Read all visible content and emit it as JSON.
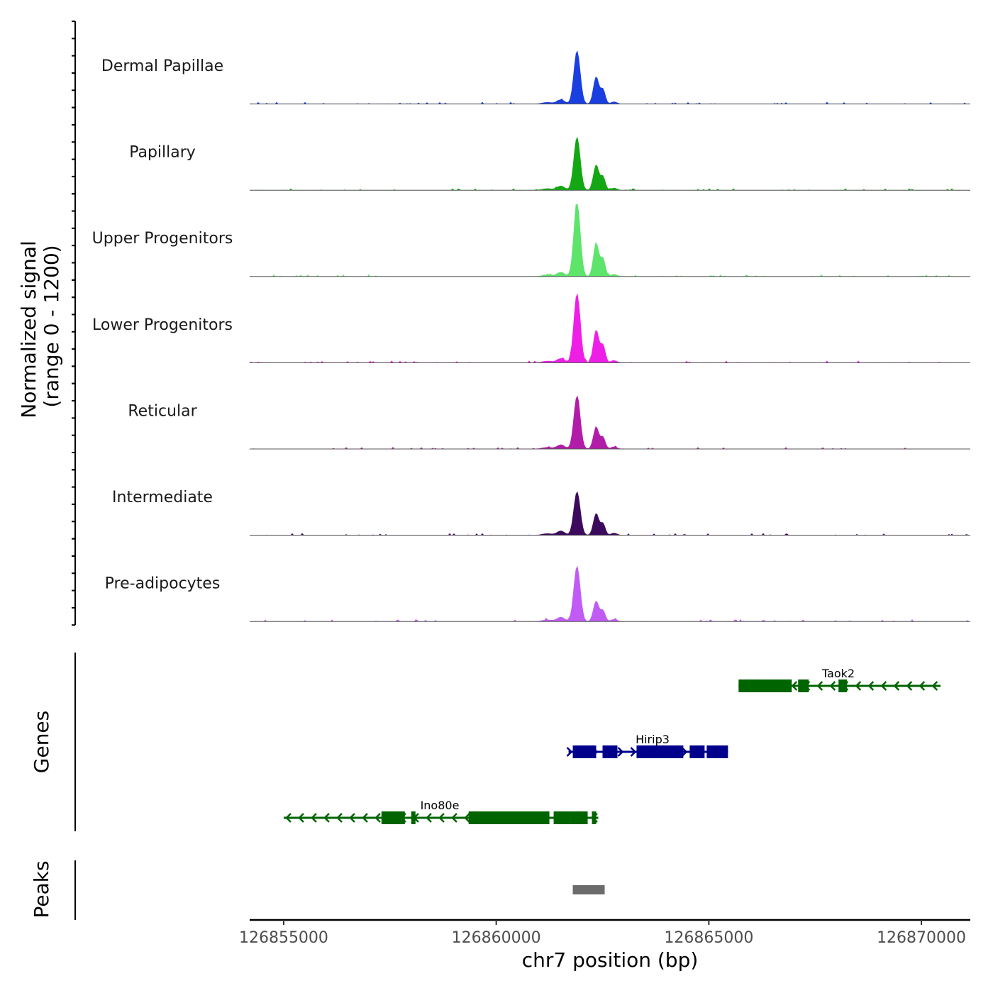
{
  "chart_data": {
    "type": "area",
    "title": "",
    "xlabel": "chr7 position (bp)",
    "ylabel": "Normalized signal\n(range 0 - 1200)",
    "ylabel_lines": [
      "Normalized signal",
      "(range 0 - 1200)"
    ],
    "xlim": [
      126854200,
      126871150
    ],
    "ylim": [
      0,
      1200
    ],
    "x_ticks": [
      126855000,
      126860000,
      126865000,
      126870000
    ],
    "x_tick_labels": [
      "126855000",
      "126860000",
      "126865000",
      "126870000"
    ],
    "peak_positions": [
      126861900,
      126862350
    ],
    "series": [
      {
        "name": "Dermal Papillae",
        "color": "#1a3fe0",
        "peak1": 1000,
        "peak2": 600
      },
      {
        "name": "Papillary",
        "color": "#13a813",
        "peak1": 1000,
        "peak2": 560
      },
      {
        "name": "Upper Progenitors",
        "color": "#5de46a",
        "peak1": 1400,
        "peak2": 730
      },
      {
        "name": "Lower Progenitors",
        "color": "#ee1ee6",
        "peak1": 1300,
        "peak2": 720
      },
      {
        "name": "Reticular",
        "color": "#b11ca8",
        "peak1": 1000,
        "peak2": 480
      },
      {
        "name": "Intermediate",
        "color": "#3c0a5c",
        "peak1": 820,
        "peak2": 480
      },
      {
        "name": "Pre-adipocytes",
        "color": "#c05cf5",
        "peak1": 1040,
        "peak2": 450
      }
    ],
    "genes_track_label": "Genes",
    "peaks_track_label": "Peaks",
    "genes": [
      {
        "name": "Taok2",
        "strand": "-",
        "start": 126865700,
        "end": 126870450,
        "color": "#006400",
        "exons": [
          [
            126865700,
            126866950
          ],
          [
            126867100,
            126867350
          ],
          [
            126868050,
            126868250
          ]
        ]
      },
      {
        "name": "Hirip3",
        "strand": "+",
        "start": 126861700,
        "end": 126865450,
        "color": "#00008b",
        "exons": [
          [
            126861800,
            126862350
          ],
          [
            126862500,
            126862850
          ],
          [
            126863300,
            126864400
          ],
          [
            126864550,
            126864900
          ],
          [
            126864950,
            126865450
          ]
        ]
      },
      {
        "name": "Ino80e",
        "strand": "-",
        "start": 126855000,
        "end": 126862400,
        "color": "#006400",
        "exons": [
          [
            126857300,
            126857850
          ],
          [
            126858000,
            126858100
          ],
          [
            126859350,
            126861250
          ],
          [
            126861350,
            126861750
          ],
          [
            126861750,
            126862150
          ],
          [
            126862250,
            126862350
          ]
        ]
      }
    ],
    "peaks": [
      {
        "start": 126861800,
        "end": 126862550,
        "color": "#6b6b6b"
      }
    ]
  }
}
